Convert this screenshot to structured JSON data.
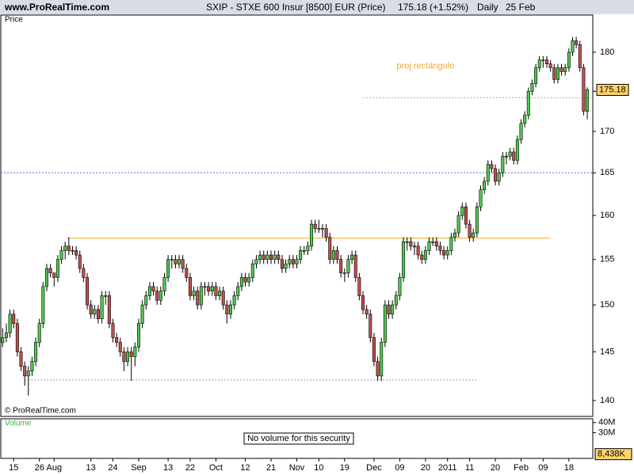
{
  "header": {
    "site": "www.ProRealTime.com",
    "title": "SXIP - STXE 600 Insur [8500] EUR (Price)",
    "change": "175.18 (+1.52%)",
    "period": "Daily",
    "date": "25 Feb"
  },
  "chart_data": {
    "type": "candlestick",
    "panel_label": "Price",
    "copyright": "© ProRealTime.com",
    "log_scale": true,
    "up_color": "#4ec94e",
    "down_color": "#c0504d",
    "ohlc": [
      [
        146,
        147.5,
        145.5,
        146.5
      ],
      [
        146.5,
        148,
        146,
        147
      ],
      [
        147,
        149.5,
        146.5,
        149
      ],
      [
        149,
        149.5,
        147.5,
        148
      ],
      [
        148,
        148.5,
        144.5,
        145
      ],
      [
        145,
        145.5,
        143,
        143.5
      ],
      [
        143.5,
        144,
        141.5,
        142.5
      ],
      [
        142.5,
        143.5,
        140.5,
        143
      ],
      [
        143,
        144.5,
        142.5,
        144
      ],
      [
        144,
        146.5,
        143.5,
        146
      ],
      [
        146,
        148.5,
        145.5,
        148
      ],
      [
        148,
        152.5,
        147.5,
        152
      ],
      [
        152,
        154.5,
        151.5,
        154
      ],
      [
        154,
        154.5,
        153,
        153.5
      ],
      [
        153.5,
        153.5,
        152,
        153
      ],
      [
        153,
        155.5,
        152.5,
        155
      ],
      [
        155,
        156.5,
        154.5,
        156
      ],
      [
        156,
        157,
        155,
        156.5
      ],
      [
        156.5,
        157.5,
        155.5,
        156
      ],
      [
        156,
        156.5,
        155.5,
        156
      ],
      [
        156,
        156.5,
        155,
        155.5
      ],
      [
        155.5,
        156,
        153.5,
        154
      ],
      [
        154,
        154.5,
        152.5,
        153
      ],
      [
        153,
        153.5,
        149.5,
        150
      ],
      [
        150,
        150.5,
        148.5,
        149
      ],
      [
        149,
        150,
        148.5,
        149.5
      ],
      [
        149.5,
        150,
        148,
        148.5
      ],
      [
        148.5,
        151.5,
        148,
        151
      ],
      [
        151,
        151.5,
        150,
        151
      ],
      [
        151,
        151.5,
        147.5,
        148
      ],
      [
        148,
        148.5,
        146,
        146.5
      ],
      [
        146.5,
        147,
        145.5,
        146
      ],
      [
        146,
        146.5,
        144.5,
        145
      ],
      [
        145,
        145.5,
        143,
        144
      ],
      [
        144,
        145.5,
        143.5,
        145
      ],
      [
        145,
        145.5,
        142,
        144.5
      ],
      [
        144.5,
        146,
        143.5,
        145.5
      ],
      [
        145.5,
        148.5,
        145,
        148
      ],
      [
        148,
        150.5,
        147.5,
        150
      ],
      [
        150,
        151.5,
        149.5,
        151
      ],
      [
        151,
        152.5,
        150.5,
        152
      ],
      [
        152,
        152.5,
        151,
        151.5
      ],
      [
        151.5,
        152,
        150,
        150.5
      ],
      [
        150.5,
        152,
        150,
        151.5
      ],
      [
        151.5,
        153.5,
        151,
        153
      ],
      [
        153,
        155.5,
        152.5,
        155
      ],
      [
        155,
        155.5,
        154,
        155
      ],
      [
        155,
        155.5,
        154,
        154.5
      ],
      [
        154.5,
        155.5,
        154,
        155
      ],
      [
        155,
        155.5,
        153.5,
        154
      ],
      [
        154,
        154.5,
        152.5,
        153
      ],
      [
        153,
        153.5,
        150.5,
        151
      ],
      [
        151,
        152,
        150.5,
        151.5
      ],
      [
        151.5,
        152,
        149.5,
        150
      ],
      [
        150,
        152.5,
        149.5,
        152
      ],
      [
        152,
        152.5,
        151,
        152
      ],
      [
        152,
        152.5,
        151,
        151.5
      ],
      [
        151.5,
        152.5,
        151,
        152
      ],
      [
        152,
        152.5,
        150.5,
        151
      ],
      [
        151,
        152,
        150.5,
        151.5
      ],
      [
        151.5,
        152,
        149.5,
        150
      ],
      [
        150,
        150.5,
        148,
        149
      ],
      [
        149,
        150.5,
        148.5,
        150
      ],
      [
        150,
        151.5,
        149.5,
        151
      ],
      [
        151,
        152.5,
        150.5,
        152
      ],
      [
        152,
        153.5,
        151.5,
        153
      ],
      [
        153,
        153.5,
        152,
        152.5
      ],
      [
        152.5,
        153.5,
        152,
        153
      ],
      [
        153,
        155,
        152.5,
        154.5
      ],
      [
        154.5,
        155.5,
        154,
        155
      ],
      [
        155,
        156,
        154.5,
        155.5
      ],
      [
        155.5,
        156,
        154.5,
        155
      ],
      [
        155,
        156,
        154.5,
        155.5
      ],
      [
        155.5,
        156,
        154.5,
        155
      ],
      [
        155,
        156,
        154.5,
        155.5
      ],
      [
        155.5,
        156,
        154.5,
        155
      ],
      [
        155,
        155.5,
        153.5,
        154
      ],
      [
        154,
        155,
        153.5,
        154.5
      ],
      [
        154.5,
        155.5,
        154,
        155
      ],
      [
        155,
        155.5,
        154,
        154.5
      ],
      [
        154.5,
        155.5,
        154,
        155
      ],
      [
        155,
        156.5,
        154.5,
        156
      ],
      [
        156,
        156.5,
        155.5,
        156
      ],
      [
        156,
        157,
        155.5,
        156.5
      ],
      [
        156.5,
        159.5,
        156,
        159
      ],
      [
        159,
        159.5,
        158,
        158.5
      ],
      [
        158.5,
        159.5,
        158,
        158.5
      ],
      [
        158.5,
        159,
        157.5,
        158.5
      ],
      [
        158.5,
        159,
        157,
        157.5
      ],
      [
        157.5,
        158,
        154.5,
        155
      ],
      [
        155,
        156.5,
        154.5,
        156
      ],
      [
        156,
        156.5,
        154.5,
        155
      ],
      [
        155,
        155.5,
        153,
        153.5
      ],
      [
        153.5,
        154,
        152.5,
        153.5
      ],
      [
        153.5,
        155.5,
        153,
        155
      ],
      [
        155,
        156,
        154.5,
        155.5
      ],
      [
        155.5,
        156,
        152.5,
        153
      ],
      [
        153,
        153.5,
        150.5,
        151
      ],
      [
        151,
        151.5,
        149,
        149.5
      ],
      [
        149.5,
        150,
        148.5,
        149
      ],
      [
        149,
        149.5,
        146,
        146.5
      ],
      [
        146.5,
        147,
        143.5,
        144
      ],
      [
        144,
        144.5,
        142,
        142.5
      ],
      [
        142.5,
        146.5,
        142,
        146
      ],
      [
        146,
        150.5,
        145.5,
        150
      ],
      [
        150,
        150.5,
        148.5,
        149
      ],
      [
        149,
        150.5,
        148.5,
        150
      ],
      [
        150,
        151.5,
        149.5,
        151
      ],
      [
        151,
        153.5,
        150.5,
        153
      ],
      [
        153,
        157.5,
        152.5,
        157
      ],
      [
        157,
        157.5,
        156,
        157
      ],
      [
        157,
        157.5,
        156,
        156.5
      ],
      [
        156.5,
        157,
        155.5,
        156.5
      ],
      [
        156.5,
        157,
        155,
        155.5
      ],
      [
        155.5,
        156,
        154.5,
        155
      ],
      [
        155,
        156.5,
        154.5,
        156
      ],
      [
        156,
        157.5,
        155.5,
        157
      ],
      [
        157,
        157.5,
        156.5,
        157
      ],
      [
        157,
        157.5,
        156,
        156.5
      ],
      [
        156.5,
        157,
        155.5,
        156
      ],
      [
        156,
        156.5,
        155,
        155.5
      ],
      [
        155.5,
        156.5,
        155,
        156
      ],
      [
        156,
        158,
        155.5,
        157.5
      ],
      [
        157.5,
        158.5,
        157,
        158
      ],
      [
        158,
        160.5,
        157.5,
        160
      ],
      [
        160,
        161.5,
        159.5,
        161
      ],
      [
        161,
        161.5,
        158.5,
        159
      ],
      [
        159,
        159.5,
        157,
        157.5
      ],
      [
        157.5,
        158.5,
        157,
        158
      ],
      [
        158,
        161.5,
        157.5,
        161
      ],
      [
        161,
        163.5,
        160.5,
        163
      ],
      [
        163,
        164.5,
        162.5,
        164
      ],
      [
        164,
        166.5,
        163.5,
        166
      ],
      [
        166,
        166.5,
        165,
        165.5
      ],
      [
        165.5,
        166,
        163.5,
        164
      ],
      [
        164,
        165.5,
        163.5,
        165
      ],
      [
        165,
        167.5,
        164.5,
        167
      ],
      [
        167,
        167.5,
        166,
        167
      ],
      [
        167,
        168,
        166.5,
        167.5
      ],
      [
        167.5,
        168,
        166,
        166.5
      ],
      [
        166.5,
        169.5,
        166,
        169
      ],
      [
        169,
        171.5,
        168.5,
        171
      ],
      [
        171,
        172.5,
        170.5,
        172
      ],
      [
        172,
        175.5,
        171.5,
        175
      ],
      [
        175,
        176.5,
        174.5,
        176
      ],
      [
        176,
        178.5,
        175.5,
        178
      ],
      [
        178,
        179.5,
        177.5,
        179
      ],
      [
        179,
        179.5,
        178,
        179
      ],
      [
        179,
        179.5,
        178,
        178.5
      ],
      [
        178.5,
        179,
        177.5,
        178
      ],
      [
        178,
        178.5,
        176,
        176.5
      ],
      [
        176.5,
        178.5,
        176,
        178
      ],
      [
        178,
        178.5,
        177,
        177.5
      ],
      [
        177.5,
        178.5,
        177,
        178
      ],
      [
        178,
        180.5,
        177.5,
        180
      ],
      [
        180,
        182,
        179.5,
        181.5
      ],
      [
        181.5,
        182,
        180.5,
        181
      ],
      [
        181,
        181.5,
        177.5,
        178
      ],
      [
        178,
        178.5,
        172,
        172.5
      ],
      [
        172.5,
        175.5,
        171.5,
        175.18
      ]
    ],
    "xlim": [
      -0.5,
      160.5
    ],
    "xticks": [
      {
        "value": 3,
        "label": "15"
      },
      {
        "value": 10,
        "label": "26"
      },
      {
        "value": 14,
        "label": "Aug"
      },
      {
        "value": 24,
        "label": "13"
      },
      {
        "value": 30,
        "label": "24"
      },
      {
        "value": 37,
        "label": "Sep"
      },
      {
        "value": 45,
        "label": "13"
      },
      {
        "value": 51,
        "label": "22"
      },
      {
        "value": 58,
        "label": "Oct"
      },
      {
        "value": 66,
        "label": "12"
      },
      {
        "value": 73,
        "label": "21"
      },
      {
        "value": 80,
        "label": "Nov"
      },
      {
        "value": 86,
        "label": "10"
      },
      {
        "value": 93,
        "label": "19"
      },
      {
        "value": 101,
        "label": "Dec"
      },
      {
        "value": 108,
        "label": "09"
      },
      {
        "value": 115,
        "label": "20"
      },
      {
        "value": 121,
        "label": "2011"
      },
      {
        "value": 127,
        "label": "11"
      },
      {
        "value": 134,
        "label": "20"
      },
      {
        "value": 141,
        "label": "Feb"
      },
      {
        "value": 147,
        "label": "09"
      },
      {
        "value": 154,
        "label": "18"
      }
    ],
    "ylim": [
      138.4,
      184.9
    ],
    "yticks": [
      140,
      145,
      150,
      155,
      160,
      165,
      170,
      175,
      180
    ],
    "last_price": 175.18,
    "hlines": [
      {
        "value": 157.4,
        "x_range": [
          17.5,
          149
        ],
        "color": "#f5a623",
        "style": "solid"
      },
      {
        "value": 174.2,
        "x_range": [
          98,
          160.5
        ],
        "color": "#f5a623",
        "style": "dashed"
      },
      {
        "value": 165,
        "x_range": [
          -0.5,
          160.5
        ],
        "color": "#4a7ab5",
        "style": "dashed"
      },
      {
        "value": 142.1,
        "x_range": [
          6,
          129
        ],
        "color": "#999999",
        "style": "dashed"
      }
    ],
    "annotation": {
      "text": "proj rectángulo",
      "x": 115,
      "y": 178.2,
      "color": "#f0a830"
    }
  },
  "volume_panel": {
    "label": "Volume",
    "message": "No volume for this security",
    "ylim": [
      5000000,
      43000000
    ],
    "yticks": [
      {
        "value": 40000000,
        "label": "40M"
      },
      {
        "value": 30000000,
        "label": "30M"
      }
    ],
    "last": {
      "value": 8438000,
      "label": "8,438K"
    }
  }
}
